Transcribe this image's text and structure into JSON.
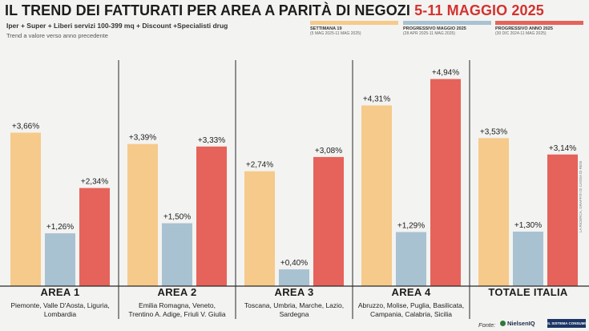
{
  "header": {
    "title_main": "IL TREND DEI FATTURATI PER AREA A PARITÀ DI NEGOZI",
    "title_date": "5-11 MAGGIO 2025",
    "subtitle": "Iper + Super + Liberi servizi 100-399 mq + Discount +Specialisti drug",
    "note": "Trend a valore verso anno precedente"
  },
  "legend": [
    {
      "name": "SETTIMANA 19",
      "dates": "(5 MAG 2025-11 MAG 2025)",
      "color": "#f6ca8a"
    },
    {
      "name": "PROGRESSIVO MAGGIO 2025",
      "dates": "(28 APR 2025-11 MAG 2025)",
      "color": "#a9c2d2"
    },
    {
      "name": "PROGRESSIVO ANNO 2025",
      "dates": "(30 DIC 2024-11 MAG 2025)",
      "color": "#e5635a"
    }
  ],
  "chart_data": {
    "type": "bar",
    "title": "IL TREND DEI FATTURATI PER AREA A PARITÀ DI NEGOZI 5-11 MAGGIO 2025",
    "categories": [
      "AREA 1",
      "AREA 2",
      "AREA 3",
      "AREA 4",
      "TOTALE ITALIA"
    ],
    "series": [
      {
        "name": "SETTIMANA 19",
        "values": [
          3.66,
          3.39,
          2.74,
          4.31,
          3.53
        ],
        "labels": [
          "+3,66%",
          "+3,39%",
          "+2,74%",
          "+4,31%",
          "+3,53%"
        ]
      },
      {
        "name": "PROGRESSIVO MAGGIO 2025",
        "values": [
          1.26,
          1.5,
          0.4,
          1.29,
          1.3
        ],
        "labels": [
          "+1,26%",
          "+1,50%",
          "+0,40%",
          "+1,29%",
          "+1,30%"
        ]
      },
      {
        "name": "PROGRESSIVO ANNO 2025",
        "values": [
          2.34,
          3.33,
          3.08,
          4.94,
          3.14
        ],
        "labels": [
          "+2,34%",
          "+3,33%",
          "+3,08%",
          "+4,94%",
          "+3,14%"
        ]
      }
    ],
    "ylim": [
      0,
      5.2
    ],
    "grid": false,
    "legend_position": "top-right"
  },
  "areas": [
    {
      "name": "AREA 1",
      "regions": [
        "Piemonte, Valle D'Aosta, Liguria,",
        "Lombardia"
      ]
    },
    {
      "name": "AREA 2",
      "regions": [
        "Emilia Romagna, Veneto,",
        "Trentino A. Adige, Friuli V. Giulia"
      ]
    },
    {
      "name": "AREA 3",
      "regions": [
        "Toscana, Umbria, Marche, Lazio,",
        "Sardegna"
      ]
    },
    {
      "name": "AREA 4",
      "regions": [
        "Abruzzo, Molise, Puglia, Basilicata,",
        "Campania, Calabria, Sicilia"
      ]
    },
    {
      "name": "TOTALE ITALIA",
      "regions": []
    }
  ],
  "footer": {
    "source_label": "Fonte:",
    "logo_1": "NielsenIQ",
    "logo_2": "IL SISTEMA CONSUMI",
    "credit": "LA RICERCA, GRAFFITI DI CASSA DI RESI"
  }
}
